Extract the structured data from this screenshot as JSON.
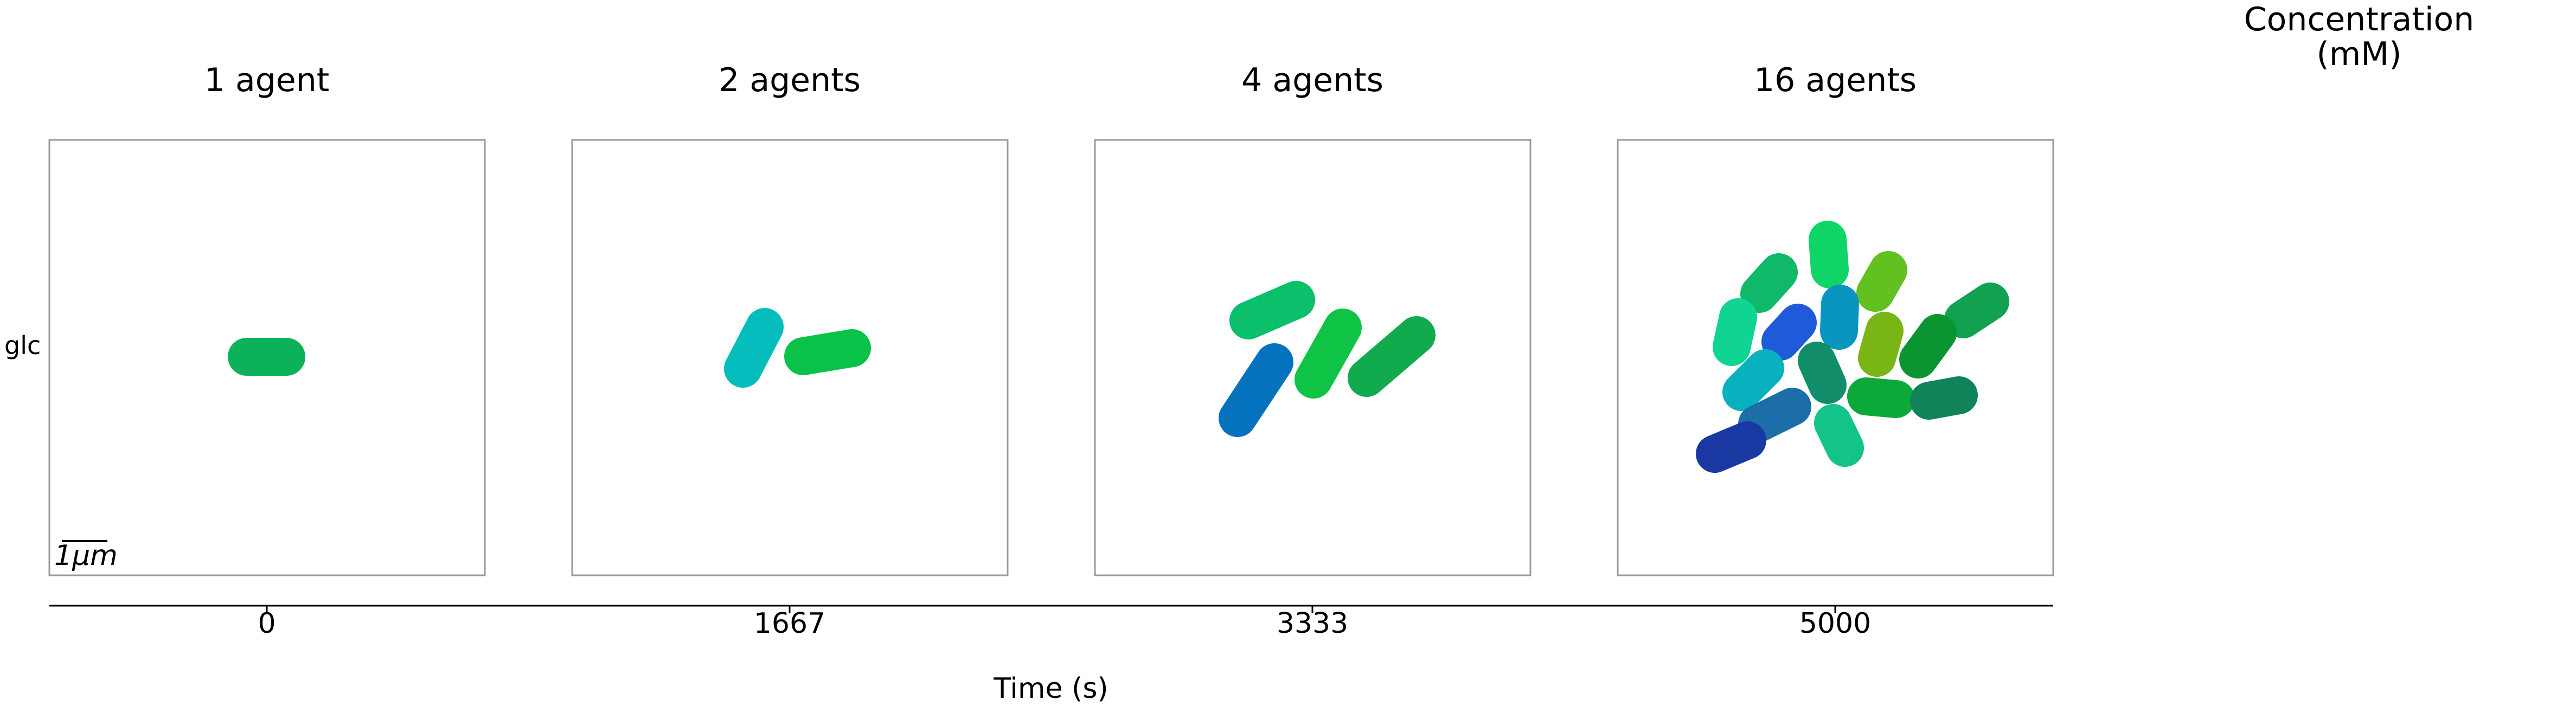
{
  "figure": {
    "panel_titles": [
      "1 agent",
      "2 agents",
      "4 agents",
      "16 agents"
    ],
    "row_label": "glc",
    "colorbar_title_line1": "Concentration",
    "colorbar_title_line2": "(mM)",
    "scale_bar_label": "1μm",
    "x_axis_title": "Time (s)",
    "time_ticks": [
      "0",
      "1667",
      "3333",
      "5000"
    ]
  },
  "chart_data": {
    "type": "snapshots",
    "x": [
      0,
      1667,
      3333,
      5000
    ],
    "agent_counts": [
      1,
      2,
      4,
      16
    ],
    "xlabel": "Time (s)",
    "colors": {
      "panel_1": [
        "#0bb25a"
      ],
      "panel_2": [
        "#06bdbd",
        "#0ac24a"
      ],
      "panel_3": [
        "#0ac06a",
        "#0572bd",
        "#0fc444",
        "#11ab4e"
      ],
      "panel_4": [
        "#0fd466",
        "#10b86a",
        "#62c021",
        "#10d494",
        "#1f5ad8",
        "#0895be",
        "#11a150",
        "#79b515",
        "#0b9532",
        "#07b2be",
        "#128d6a",
        "#0ca838",
        "#108358",
        "#1c6ea8",
        "#12c48a",
        "#1a38a2"
      ]
    }
  }
}
